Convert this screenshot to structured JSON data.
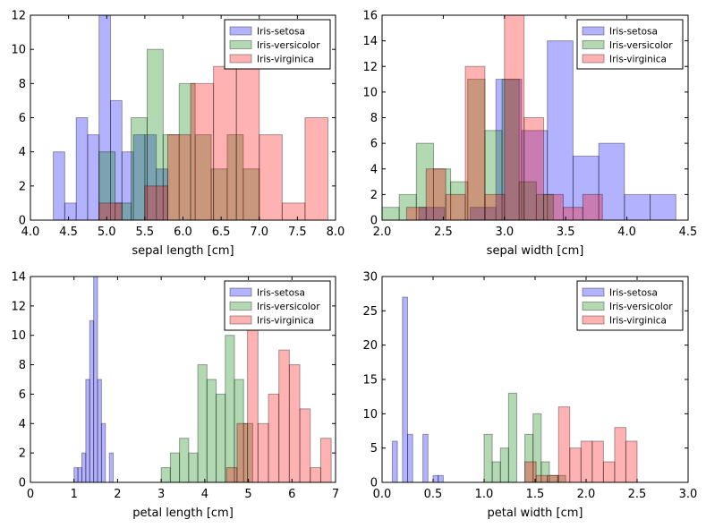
{
  "colors": {
    "setosa": "#0000ff",
    "versicolor": "#008000",
    "virginica": "#ff0000"
  },
  "chart_data": [
    {
      "type": "bar",
      "xlabel": "sepal length [cm]",
      "ylabel": "",
      "xlim": [
        4.0,
        8.0
      ],
      "ylim": [
        0,
        12
      ],
      "xticks": [
        "4.0",
        "4.5",
        "5.0",
        "5.5",
        "6.0",
        "6.5",
        "7.0",
        "7.5",
        "8.0"
      ],
      "yticks": [
        "0",
        "2",
        "4",
        "6",
        "8",
        "10",
        "12"
      ],
      "legend": [
        "Iris-setosa",
        "Iris-versicolor",
        "Iris-virginica"
      ],
      "series": [
        {
          "name": "Iris-setosa",
          "color": "setosa",
          "bins": [
            [
              4.3,
              4.45,
              4
            ],
            [
              4.45,
              4.6,
              1
            ],
            [
              4.6,
              4.75,
              6
            ],
            [
              4.75,
              4.9,
              5
            ],
            [
              4.9,
              5.05,
              12
            ],
            [
              5.05,
              5.2,
              7
            ],
            [
              5.2,
              5.35,
              4
            ],
            [
              5.35,
              5.5,
              5
            ],
            [
              5.5,
              5.65,
              5
            ],
            [
              5.65,
              5.8,
              3
            ]
          ]
        },
        {
          "name": "Iris-versicolor",
          "color": "versicolor",
          "bins": [
            [
              4.9,
              5.11,
              4
            ],
            [
              5.11,
              5.32,
              1
            ],
            [
              5.32,
              5.53,
              6
            ],
            [
              5.53,
              5.74,
              10
            ],
            [
              5.74,
              5.95,
              5
            ],
            [
              5.95,
              6.16,
              8
            ],
            [
              6.16,
              6.37,
              5
            ],
            [
              6.37,
              6.58,
              3
            ],
            [
              6.58,
              6.79,
              5
            ],
            [
              6.79,
              7.0,
              3
            ]
          ]
        },
        {
          "name": "Iris-virginica",
          "color": "virginica",
          "bins": [
            [
              4.9,
              5.2,
              1
            ],
            [
              5.2,
              5.5,
              0
            ],
            [
              5.5,
              5.8,
              2
            ],
            [
              5.8,
              6.1,
              5
            ],
            [
              6.1,
              6.4,
              8
            ],
            [
              6.4,
              6.7,
              9
            ],
            [
              6.7,
              7.0,
              9
            ],
            [
              7.0,
              7.3,
              5
            ],
            [
              7.3,
              7.6,
              1
            ],
            [
              7.6,
              7.9,
              6
            ]
          ]
        }
      ]
    },
    {
      "type": "bar",
      "xlabel": "sepal width [cm]",
      "ylabel": "",
      "xlim": [
        2.0,
        4.5
      ],
      "ylim": [
        0,
        16
      ],
      "xticks": [
        "2.0",
        "2.5",
        "3.0",
        "3.5",
        "4.0",
        "4.5"
      ],
      "yticks": [
        "0",
        "2",
        "4",
        "6",
        "8",
        "10",
        "12",
        "14",
        "16"
      ],
      "legend": [
        "Iris-setosa",
        "Iris-versicolor",
        "Iris-virginica"
      ],
      "series": [
        {
          "name": "Iris-setosa",
          "color": "setosa",
          "bins": [
            [
              2.3,
              2.51,
              1
            ],
            [
              2.51,
              2.72,
              0
            ],
            [
              2.72,
              2.93,
              1
            ],
            [
              2.93,
              3.14,
              11
            ],
            [
              3.14,
              3.35,
              7
            ],
            [
              3.35,
              3.56,
              14
            ],
            [
              3.56,
              3.77,
              5
            ],
            [
              3.77,
              3.98,
              6
            ],
            [
              3.98,
              4.19,
              2
            ],
            [
              4.19,
              4.4,
              2
            ]
          ]
        },
        {
          "name": "Iris-versicolor",
          "color": "versicolor",
          "bins": [
            [
              2.0,
              2.14,
              1
            ],
            [
              2.14,
              2.28,
              2
            ],
            [
              2.28,
              2.42,
              6
            ],
            [
              2.42,
              2.56,
              4
            ],
            [
              2.56,
              2.7,
              3
            ],
            [
              2.7,
              2.84,
              11
            ],
            [
              2.84,
              2.98,
              7
            ],
            [
              2.98,
              3.12,
              11
            ],
            [
              3.12,
              3.26,
              3
            ],
            [
              3.26,
              3.4,
              2
            ]
          ]
        },
        {
          "name": "Iris-virginica",
          "color": "virginica",
          "bins": [
            [
              2.2,
              2.36,
              1
            ],
            [
              2.36,
              2.52,
              4
            ],
            [
              2.52,
              2.68,
              2
            ],
            [
              2.68,
              2.84,
              12
            ],
            [
              2.84,
              3.0,
              2
            ],
            [
              3.0,
              3.16,
              16
            ],
            [
              3.16,
              3.32,
              8
            ],
            [
              3.32,
              3.48,
              2
            ],
            [
              3.48,
              3.64,
              1
            ],
            [
              3.64,
              3.8,
              2
            ]
          ]
        }
      ]
    },
    {
      "type": "bar",
      "xlabel": "petal length [cm]",
      "ylabel": "",
      "xlim": [
        0,
        7
      ],
      "ylim": [
        0,
        14
      ],
      "xticks": [
        "0",
        "1",
        "2",
        "3",
        "4",
        "5",
        "6",
        "7"
      ],
      "yticks": [
        "0",
        "2",
        "4",
        "6",
        "8",
        "10",
        "12",
        "14"
      ],
      "legend": [
        "Iris-setosa",
        "Iris-versicolor",
        "Iris-virginica"
      ],
      "series": [
        {
          "name": "Iris-setosa",
          "color": "setosa",
          "bins": [
            [
              1.0,
              1.09,
              1
            ],
            [
              1.09,
              1.18,
              1
            ],
            [
              1.18,
              1.27,
              2
            ],
            [
              1.27,
              1.36,
              7
            ],
            [
              1.36,
              1.45,
              11
            ],
            [
              1.45,
              1.54,
              14
            ],
            [
              1.54,
              1.63,
              7
            ],
            [
              1.63,
              1.72,
              4
            ],
            [
              1.72,
              1.81,
              0
            ],
            [
              1.81,
              1.9,
              2
            ]
          ]
        },
        {
          "name": "Iris-versicolor",
          "color": "versicolor",
          "bins": [
            [
              3.0,
              3.21,
              1
            ],
            [
              3.21,
              3.42,
              2
            ],
            [
              3.42,
              3.63,
              3
            ],
            [
              3.63,
              3.84,
              2
            ],
            [
              3.84,
              4.05,
              8
            ],
            [
              4.05,
              4.26,
              7
            ],
            [
              4.26,
              4.47,
              6
            ],
            [
              4.47,
              4.68,
              10
            ],
            [
              4.68,
              4.89,
              7
            ],
            [
              4.89,
              5.1,
              4
            ]
          ]
        },
        {
          "name": "Iris-virginica",
          "color": "virginica",
          "bins": [
            [
              4.5,
              4.74,
              1
            ],
            [
              4.74,
              4.98,
              4
            ],
            [
              4.98,
              5.22,
              11
            ],
            [
              5.22,
              5.46,
              4
            ],
            [
              5.46,
              5.7,
              6
            ],
            [
              5.7,
              5.94,
              9
            ],
            [
              5.94,
              6.18,
              8
            ],
            [
              6.18,
              6.42,
              5
            ],
            [
              6.42,
              6.66,
              1
            ],
            [
              6.66,
              6.9,
              3
            ]
          ]
        }
      ]
    },
    {
      "type": "bar",
      "xlabel": "petal width [cm]",
      "ylabel": "",
      "xlim": [
        0.0,
        3.0
      ],
      "ylim": [
        0,
        30
      ],
      "xticks": [
        "0.0",
        "0.5",
        "1.0",
        "1.5",
        "2.0",
        "2.5",
        "3.0"
      ],
      "yticks": [
        "0",
        "5",
        "10",
        "15",
        "20",
        "25",
        "30"
      ],
      "legend": [
        "Iris-setosa",
        "Iris-versicolor",
        "Iris-virginica"
      ],
      "series": [
        {
          "name": "Iris-setosa",
          "color": "setosa",
          "bins": [
            [
              0.1,
              0.15,
              6
            ],
            [
              0.15,
              0.2,
              0
            ],
            [
              0.2,
              0.25,
              27
            ],
            [
              0.25,
              0.3,
              7
            ],
            [
              0.3,
              0.35,
              0
            ],
            [
              0.35,
              0.4,
              0
            ],
            [
              0.4,
              0.45,
              7
            ],
            [
              0.45,
              0.5,
              0
            ],
            [
              0.5,
              0.55,
              1
            ],
            [
              0.55,
              0.6,
              1
            ]
          ]
        },
        {
          "name": "Iris-versicolor",
          "color": "versicolor",
          "bins": [
            [
              1.0,
              1.08,
              7
            ],
            [
              1.08,
              1.16,
              3
            ],
            [
              1.16,
              1.24,
              5
            ],
            [
              1.24,
              1.32,
              13
            ],
            [
              1.32,
              1.4,
              0
            ],
            [
              1.4,
              1.48,
              7
            ],
            [
              1.48,
              1.56,
              10
            ],
            [
              1.56,
              1.64,
              3
            ],
            [
              1.64,
              1.72,
              1
            ],
            [
              1.72,
              1.8,
              1
            ]
          ]
        },
        {
          "name": "Iris-virginica",
          "color": "virginica",
          "bins": [
            [
              1.4,
              1.51,
              3
            ],
            [
              1.51,
              1.62,
              1
            ],
            [
              1.62,
              1.73,
              1
            ],
            [
              1.73,
              1.84,
              11
            ],
            [
              1.84,
              1.95,
              5
            ],
            [
              1.95,
              2.06,
              6
            ],
            [
              2.06,
              2.17,
              6
            ],
            [
              2.17,
              2.28,
              3
            ],
            [
              2.28,
              2.39,
              8
            ],
            [
              2.39,
              2.5,
              6
            ]
          ]
        }
      ]
    }
  ]
}
